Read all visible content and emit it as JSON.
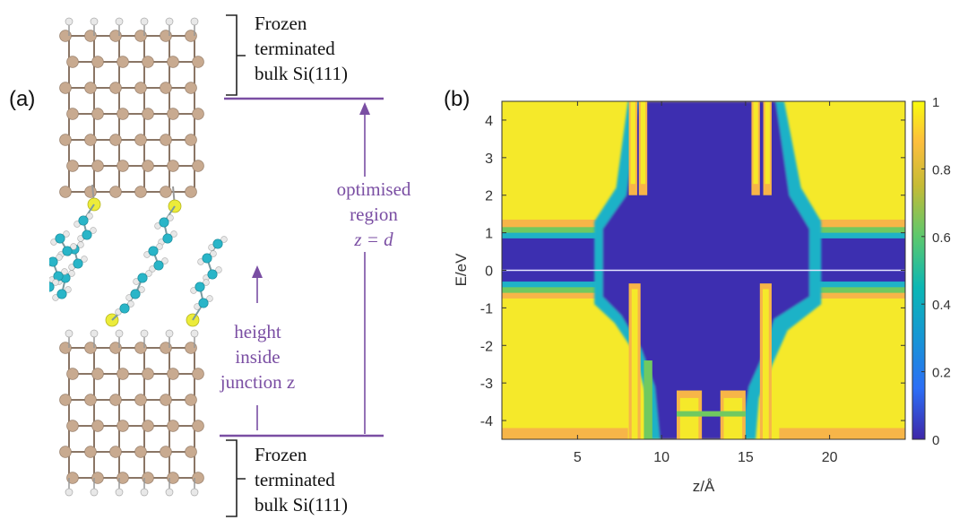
{
  "panel_a": {
    "label": "(a)",
    "frozen_top": [
      "Frozen",
      "terminated",
      "bulk Si(111)"
    ],
    "frozen_bottom": [
      "Frozen",
      "terminated",
      "bulk Si(111)"
    ],
    "optimised": {
      "line1": "optimised",
      "line2": "region",
      "line3": "z = d"
    },
    "height": {
      "line1": "height",
      "line2": "inside",
      "line3": "junction z"
    },
    "colors": {
      "si": "#c8aa90",
      "h": "#e8e8e8",
      "s": "#ecec3a",
      "c": "#29b5c8",
      "annot": "#7a4ea3"
    }
  },
  "panel_b": {
    "label": "(b)",
    "chart_data": {
      "type": "heatmap",
      "title": "",
      "xlabel": "z/Å",
      "ylabel": "E/eV",
      "xticks": [
        "5",
        "10",
        "15",
        "20"
      ],
      "yticks": [
        "4",
        "3",
        "2",
        "1",
        "0",
        "-1",
        "-2",
        "-3",
        "-4"
      ],
      "xlim": [
        0.5,
        24.5
      ],
      "ylim": [
        -4.5,
        4.5
      ],
      "colorbar": {
        "ticks": [
          "1",
          "0.8",
          "0.6",
          "0.4",
          "0.2",
          "0"
        ],
        "range": [
          0,
          1
        ]
      },
      "colormap": "parula",
      "description_values": {
        "bulk_value": 1,
        "gap_value": 0,
        "gap_range_eV": [
          -0.3,
          0.7
        ],
        "junction_region_z": [
          8,
          17
        ]
      }
    }
  }
}
